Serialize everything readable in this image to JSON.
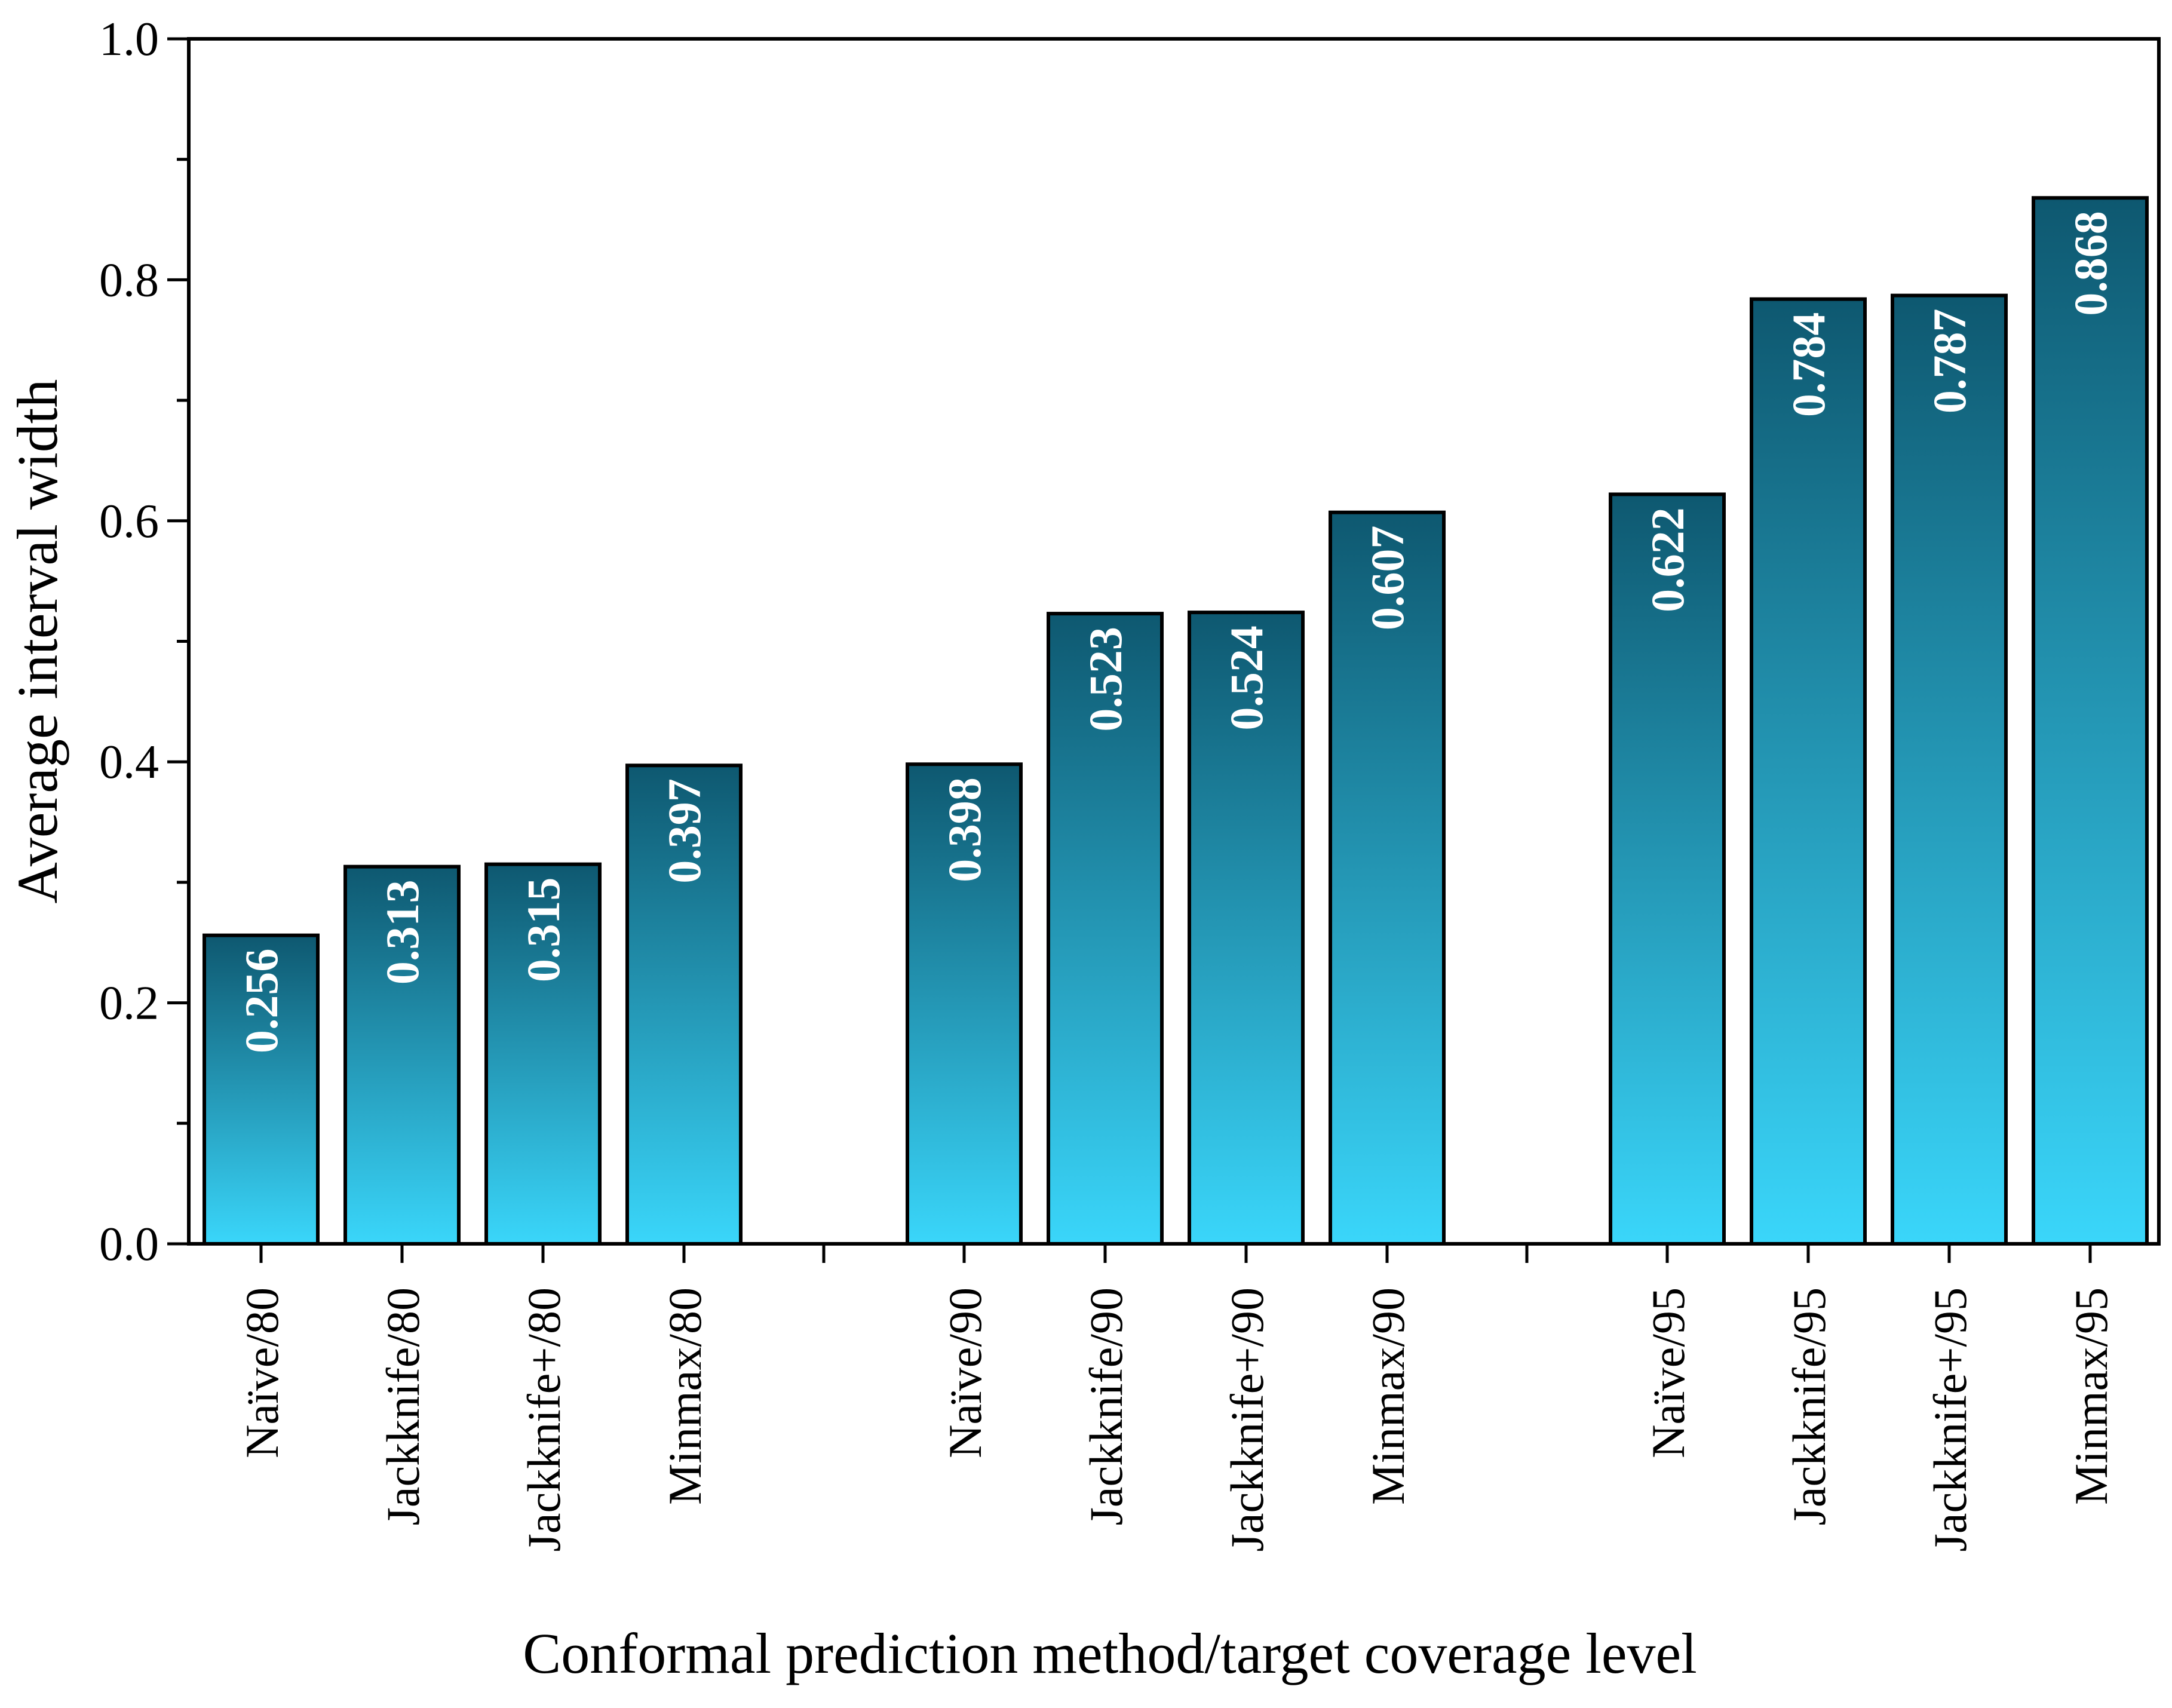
{
  "chart_data": {
    "type": "bar",
    "title": "",
    "xlabel": "Conformal prediction method/target coverage level",
    "ylabel": "Average interval width",
    "ylim": [
      0,
      1.0
    ],
    "yticks": [
      "0.0",
      "0.2",
      "0.4",
      "0.6",
      "0.8",
      "1.0"
    ],
    "grid": false,
    "groups": [
      {
        "level": "80",
        "bars": [
          {
            "category": "Naïve/80",
            "value": 0.256,
            "label": "0.256"
          },
          {
            "category": "Jackknife/80",
            "value": 0.313,
            "label": "0.313"
          },
          {
            "category": "Jackknife+/80",
            "value": 0.315,
            "label": "0.315"
          },
          {
            "category": "Minmax/80",
            "value": 0.397,
            "label": "0.397"
          }
        ]
      },
      {
        "level": "90",
        "bars": [
          {
            "category": "Naïve/90",
            "value": 0.398,
            "label": "0.398"
          },
          {
            "category": "Jackknife/90",
            "value": 0.523,
            "label": "0.523"
          },
          {
            "category": "Jackknife+/90",
            "value": 0.524,
            "label": "0.524"
          },
          {
            "category": "Minmax/90",
            "value": 0.607,
            "label": "0.607"
          }
        ]
      },
      {
        "level": "95",
        "bars": [
          {
            "category": "Naïve/95",
            "value": 0.622,
            "label": "0.622"
          },
          {
            "category": "Jackknife/95",
            "value": 0.784,
            "label": "0.784"
          },
          {
            "category": "Jackknife+/95",
            "value": 0.787,
            "label": "0.787"
          },
          {
            "category": "Minmax/95",
            "value": 0.868,
            "label": "0.868"
          }
        ]
      }
    ],
    "colors": {
      "bar_top": "#0e5870",
      "bar_bottom": "#3ad6fa",
      "bar_edge": "#000000",
      "label_text": "#ffffff"
    }
  }
}
